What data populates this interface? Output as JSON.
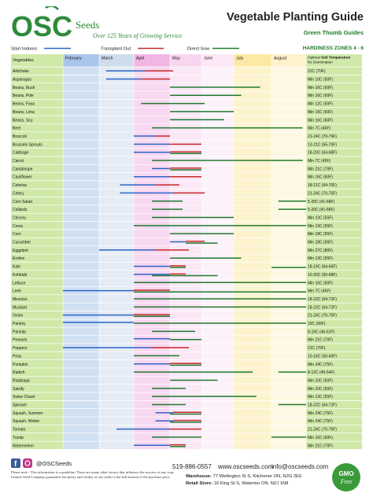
{
  "header": {
    "brand": "OSC",
    "brand_seeds": "Seeds",
    "tagline": "Over 125 Years of Growing Service",
    "title": "Vegetable Planting Guide",
    "subtitle": "Green Thumb Guides",
    "zones": "HARDINESS ZONES 4 - 6"
  },
  "legend": {
    "start_indoors": "Start Indoors",
    "transplant_out": "Transplant Out",
    "direct_sow": "Direct Sow"
  },
  "colors": {
    "start_indoors": "#2b63c6",
    "transplant_out": "#c62828",
    "direct_sow": "#1e7a2e",
    "veg_col": "#cfe9a9",
    "temp_col": "#cfe9a9",
    "feb": "#a9c6ea",
    "mar": "#cfdcec",
    "apr": "#f2b6e4",
    "may": "#f8d6ef",
    "jun": "#fbe7f5",
    "jul": "#fce9a4",
    "aug": "#fdf2cc"
  },
  "chart_data": {
    "type": "gantt",
    "x": [
      "February",
      "March",
      "April",
      "May",
      "June",
      "July",
      "August"
    ],
    "col_labels": {
      "vegetables": "Vegetables",
      "temp_prefix": "Optimal",
      "temp_bold": "Soil Temperature",
      "temp_suffix": "for Germination"
    },
    "series": [
      {
        "name": "Start Indoors"
      },
      {
        "name": "Transplant Out"
      },
      {
        "name": "Direct Sow"
      }
    ],
    "rows": [
      {
        "veg": "Artichoke",
        "temp": "21C (70F)",
        "bars": [
          [
            1,
            [
              1.2,
              2.3
            ]
          ],
          [
            2,
            [
              2.3,
              3.1
            ]
          ]
        ]
      },
      {
        "veg": "Asparagus",
        "temp": "Min 10C (50F)",
        "bars": [
          [
            1,
            [
              1.2,
              2.2
            ]
          ],
          [
            2,
            [
              2.2,
              3.0
            ]
          ]
        ]
      },
      {
        "veg": "Beans, Bush",
        "temp": "Min 16C (60F)",
        "bars": [
          [
            3,
            [
              3.0,
              5.7
            ]
          ]
        ]
      },
      {
        "veg": "Beans, Pole",
        "temp": "Min 16C (60F)",
        "bars": [
          [
            3,
            [
              3.0,
              5.2
            ]
          ]
        ]
      },
      {
        "veg": "Beans, Fava",
        "temp": "Min 12C (50F)",
        "bars": [
          [
            3,
            [
              2.2,
              4.1
            ]
          ]
        ]
      },
      {
        "veg": "Beans, Lima",
        "temp": "Min 16C (60F)",
        "bars": [
          [
            3,
            [
              3.0,
              5.0
            ]
          ]
        ]
      },
      {
        "veg": "Beans, Soy",
        "temp": "Min 16C (60F)",
        "bars": [
          [
            3,
            [
              3.0,
              4.7
            ]
          ]
        ]
      },
      {
        "veg": "Beet",
        "temp": "Min 7C (45F)",
        "bars": [
          [
            3,
            [
              2.5,
              6.9
            ]
          ]
        ]
      },
      {
        "veg": "Broccoli",
        "temp": "21-24C (70-79F)",
        "bars": [
          [
            1,
            [
              2.0,
              2.6
            ]
          ],
          [
            2,
            [
              2.6,
              3.0
            ]
          ]
        ]
      },
      {
        "veg": "Brussels Sprouts",
        "temp": "13-21C (55-70F)",
        "bars": [
          [
            1,
            [
              2.0,
              3.0
            ]
          ],
          [
            2,
            [
              3.0,
              4.0
            ]
          ]
        ]
      },
      {
        "veg": "Cabbage",
        "temp": "18-20C (64-68F)",
        "bars": [
          [
            1,
            [
              2.0,
              3.0
            ]
          ],
          [
            2,
            [
              3.0,
              4.0
            ]
          ],
          [
            3,
            [
              3.0,
              4.0
            ]
          ]
        ]
      },
      {
        "veg": "Carrot",
        "temp": "Min 7C (45F)",
        "bars": [
          [
            3,
            [
              2.5,
              6.9
            ]
          ]
        ]
      },
      {
        "veg": "Cantaloupe",
        "temp": "Min 21C (70F)",
        "bars": [
          [
            1,
            [
              2.5,
              3.0
            ]
          ],
          [
            2,
            [
              3.0,
              4.0
            ]
          ],
          [
            3,
            [
              3.0,
              4.0
            ]
          ]
        ]
      },
      {
        "veg": "Cauliflower",
        "temp": "Min 16C (60F)",
        "bars": [
          [
            1,
            [
              2.0,
              3.0
            ]
          ],
          [
            2,
            [
              3.0,
              4.0
            ]
          ]
        ]
      },
      {
        "veg": "Celeriac",
        "temp": "18-21C (64-70F)",
        "bars": [
          [
            1,
            [
              1.6,
              2.6
            ]
          ],
          [
            2,
            [
              2.6,
              3.3
            ]
          ]
        ]
      },
      {
        "veg": "Celery",
        "temp": "21-24C (70-75F)",
        "bars": [
          [
            1,
            [
              1.6,
              3.1
            ]
          ],
          [
            2,
            [
              3.1,
              4.1
            ]
          ]
        ]
      },
      {
        "veg": "Corn Salad",
        "temp": "5-20C (41-68F)",
        "bars": [
          [
            3,
            [
              2.5,
              3.4
            ]
          ],
          [
            3,
            [
              6.2,
              7.0
            ]
          ]
        ]
      },
      {
        "veg": "Collards",
        "temp": "5-20C (41-68F)",
        "bars": [
          [
            3,
            [
              2.5,
              3.4
            ]
          ],
          [
            3,
            [
              6.2,
              7.0
            ]
          ]
        ]
      },
      {
        "veg": "Chicory",
        "temp": "Min 13C (55F)",
        "bars": [
          [
            3,
            [
              2.5,
              5.0
            ]
          ]
        ]
      },
      {
        "veg": "Cress",
        "temp": "Min 13C (55F)",
        "bars": [
          [
            3,
            [
              2.0,
              7.0
            ]
          ]
        ]
      },
      {
        "veg": "Corn",
        "temp": "Min 18C (65F)",
        "bars": [
          [
            3,
            [
              3.0,
              5.0
            ]
          ]
        ]
      },
      {
        "veg": "Cucumber",
        "temp": "Min 18C (65F)",
        "bars": [
          [
            1,
            [
              3.0,
              3.5
            ]
          ],
          [
            2,
            [
              3.5,
              4.1
            ]
          ],
          [
            3,
            [
              3.5,
              4.5
            ]
          ]
        ]
      },
      {
        "veg": "Eggplant",
        "temp": "Min 27C (80F)",
        "bars": [
          [
            1,
            [
              1.0,
              2.6
            ]
          ],
          [
            2,
            [
              2.6,
              3.6
            ]
          ]
        ]
      },
      {
        "veg": "Endive",
        "temp": "Min 13C (55F)",
        "bars": [
          [
            3,
            [
              3.0,
              5.2
            ]
          ]
        ]
      },
      {
        "veg": "Kale",
        "temp": "18-19C (64-66F)",
        "bars": [
          [
            1,
            [
              2.0,
              3.0
            ]
          ],
          [
            2,
            [
              3.0,
              3.5
            ]
          ],
          [
            3,
            [
              3.0,
              3.5
            ]
          ],
          [
            3,
            [
              6.0,
              7.0
            ]
          ]
        ]
      },
      {
        "veg": "Kohlrabi",
        "temp": "10-20C (50-68F)",
        "bars": [
          [
            1,
            [
              2.0,
              3.0
            ]
          ],
          [
            2,
            [
              3.0,
              3.5
            ]
          ],
          [
            3,
            [
              2.5,
              4.5
            ]
          ]
        ]
      },
      {
        "veg": "Lettuce",
        "temp": "Min 16C (60F)",
        "bars": [
          [
            3,
            [
              2.0,
              7.0
            ]
          ]
        ]
      },
      {
        "veg": "Leek",
        "temp": "Min 7C (45F)",
        "bars": [
          [
            1,
            [
              0.0,
              2.0
            ]
          ],
          [
            2,
            [
              2.0,
              3.0
            ]
          ],
          [
            3,
            [
              2.0,
              7.0
            ]
          ]
        ]
      },
      {
        "veg": "Mesclun",
        "temp": "18-22C (64-72F)",
        "bars": [
          [
            3,
            [
              2.0,
              7.0
            ]
          ]
        ]
      },
      {
        "veg": "Mustard",
        "temp": "18-22C (64-72F)",
        "bars": [
          [
            3,
            [
              2.0,
              7.0
            ]
          ]
        ]
      },
      {
        "veg": "Onion",
        "temp": "21-24C (70-75F)",
        "bars": [
          [
            1,
            [
              0.0,
              2.0
            ]
          ],
          [
            2,
            [
              2.0,
              3.0
            ]
          ],
          [
            3,
            [
              2.0,
              3.0
            ]
          ]
        ]
      },
      {
        "veg": "Parsley",
        "temp": "19C (66F)",
        "bars": [
          [
            1,
            [
              0.0,
              2.0
            ]
          ],
          [
            3,
            [
              2.0,
              7.0
            ]
          ]
        ]
      },
      {
        "veg": "Parsnip",
        "temp": "8-16C (46-61F)",
        "bars": [
          [
            3,
            [
              2.5,
              3.8
            ]
          ]
        ]
      },
      {
        "veg": "Peanuts",
        "temp": "Min 21C (70F)",
        "bars": [
          [
            1,
            [
              2.0,
              3.0
            ]
          ],
          [
            3,
            [
              3.0,
              4.0
            ]
          ]
        ]
      },
      {
        "veg": "Peppers",
        "temp": "21C (70F)",
        "bars": [
          [
            1,
            [
              0.0,
              2.5
            ]
          ],
          [
            2,
            [
              2.5,
              3.6
            ]
          ]
        ]
      },
      {
        "veg": "Peas",
        "temp": "10-16C (50-60F)",
        "bars": [
          [
            3,
            [
              2.0,
              3.3
            ]
          ]
        ]
      },
      {
        "veg": "Pumpkin",
        "temp": "Min 24C (75F)",
        "bars": [
          [
            1,
            [
              2.0,
              3.0
            ]
          ],
          [
            2,
            [
              3.0,
              4.0
            ]
          ],
          [
            3,
            [
              3.0,
              4.0
            ]
          ]
        ]
      },
      {
        "veg": "Radish",
        "temp": "8-12C (46-54F)",
        "bars": [
          [
            3,
            [
              2.0,
              5.5
            ]
          ],
          [
            3,
            [
              6.2,
              7.0
            ]
          ]
        ]
      },
      {
        "veg": "Rutabaga",
        "temp": "Min 10C (50F)",
        "bars": [
          [
            3,
            [
              3.0,
              4.5
            ]
          ]
        ]
      },
      {
        "veg": "Salsify",
        "temp": "Min 10C (50F)",
        "bars": [
          [
            3,
            [
              2.5,
              3.5
            ]
          ]
        ]
      },
      {
        "veg": "Swiss Chard",
        "temp": "Min 13C (55F)",
        "bars": [
          [
            3,
            [
              2.5,
              5.6
            ]
          ]
        ]
      },
      {
        "veg": "Spinach",
        "temp": "18-22C (64-72F)",
        "bars": [
          [
            3,
            [
              2.5,
              3.5
            ]
          ],
          [
            3,
            [
              6.2,
              7.0
            ]
          ]
        ]
      },
      {
        "veg": "Squash, Summer",
        "temp": "Min 24C (75F)",
        "bars": [
          [
            1,
            [
              2.6,
              3.1
            ]
          ],
          [
            2,
            [
              3.1,
              4.0
            ]
          ],
          [
            3,
            [
              3.0,
              4.0
            ]
          ]
        ]
      },
      {
        "veg": "Squash, Winter",
        "temp": "Min 24C (75F)",
        "bars": [
          [
            1,
            [
              2.6,
              3.1
            ]
          ],
          [
            2,
            [
              3.1,
              4.0
            ]
          ],
          [
            3,
            [
              3.0,
              4.0
            ]
          ]
        ]
      },
      {
        "veg": "Tomato",
        "temp": "21-24C (70-75F)",
        "bars": [
          [
            1,
            [
              1.5,
              3.0
            ]
          ],
          [
            2,
            [
              3.0,
              4.0
            ]
          ]
        ]
      },
      {
        "veg": "Turnip",
        "temp": "Min 16C (60F)",
        "bars": [
          [
            3,
            [
              2.5,
              4.0
            ]
          ],
          [
            3,
            [
              6.0,
              7.0
            ]
          ]
        ]
      },
      {
        "veg": "Watermelon",
        "temp": "Min 21C (70F)",
        "bars": [
          [
            1,
            [
              2.0,
              3.0
            ]
          ],
          [
            2,
            [
              3.0,
              3.5
            ]
          ],
          [
            3,
            [
              3.0,
              3.5
            ]
          ]
        ]
      }
    ]
  },
  "footer": {
    "social_handle": "@OSCSeeds",
    "note": "Please note - This information is a guideline. There are many other factors that influence the success of any crop. Ontario Seed Company guarantees the purity and vitality of our seeds to the full amount of the purchase price.",
    "phone": "519-886-0557",
    "website": "www.oscseeds.com",
    "email": "info@oscseeds.com",
    "warehouse_label": "Warehouse:",
    "warehouse": "77 Wellington St S, Kitchener ON, N2G 2E6",
    "retail_label": "Retail Store:",
    "retail": "16 King St S, Waterloo ON, N2J 1N8",
    "gmo_line1": "GMO",
    "gmo_line2": "Free"
  }
}
